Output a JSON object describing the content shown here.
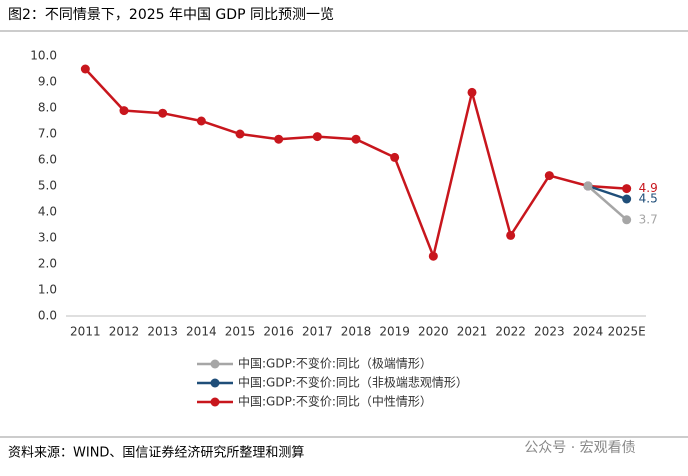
{
  "chart_data": {
    "type": "line",
    "title": "图2：不同情景下，2025 年中国 GDP 同比预测一览",
    "source": "资料来源：WIND、国信证券经济研究所整理和测算",
    "watermark": "公众号 · 宏观看债",
    "categories": [
      "2011",
      "2012",
      "2013",
      "2014",
      "2015",
      "2016",
      "2017",
      "2018",
      "2019",
      "2020",
      "2021",
      "2022",
      "2023",
      "2024",
      "2025E"
    ],
    "series": [
      {
        "name": "中国:GDP:不变价:同比（极端情形）",
        "color": "#a6a6a6",
        "values": [
          null,
          null,
          null,
          null,
          null,
          null,
          null,
          null,
          null,
          null,
          null,
          null,
          null,
          5.0,
          3.7
        ]
      },
      {
        "name": "中国:GDP:不变价:同比（非极端悲观情形）",
        "color": "#1f4e79",
        "values": [
          null,
          null,
          null,
          null,
          null,
          null,
          null,
          null,
          null,
          null,
          null,
          null,
          null,
          5.0,
          4.5
        ]
      },
      {
        "name": "中国:GDP:不变价:同比（中性情形）",
        "color": "#c8161d",
        "values": [
          9.5,
          7.9,
          7.8,
          7.5,
          7.0,
          6.8,
          6.9,
          6.8,
          6.1,
          2.3,
          8.6,
          3.1,
          5.4,
          5.0,
          4.9
        ]
      }
    ],
    "ylim": [
      0,
      10
    ],
    "yticks": [
      {
        "value": 0,
        "label": "0.0"
      },
      {
        "value": 1,
        "label": "1.0"
      },
      {
        "value": 2,
        "label": "2.0"
      },
      {
        "value": 3,
        "label": "3.0"
      },
      {
        "value": 4,
        "label": "4.0"
      },
      {
        "value": 5,
        "label": "5.0"
      },
      {
        "value": 6,
        "label": "6.0"
      },
      {
        "value": 7,
        "label": "7.0"
      },
      {
        "value": 8,
        "label": "8.0"
      },
      {
        "value": 9,
        "label": "9.0"
      },
      {
        "value": 10,
        "label": "10.0"
      }
    ],
    "grid": false,
    "legend": "bottom"
  }
}
